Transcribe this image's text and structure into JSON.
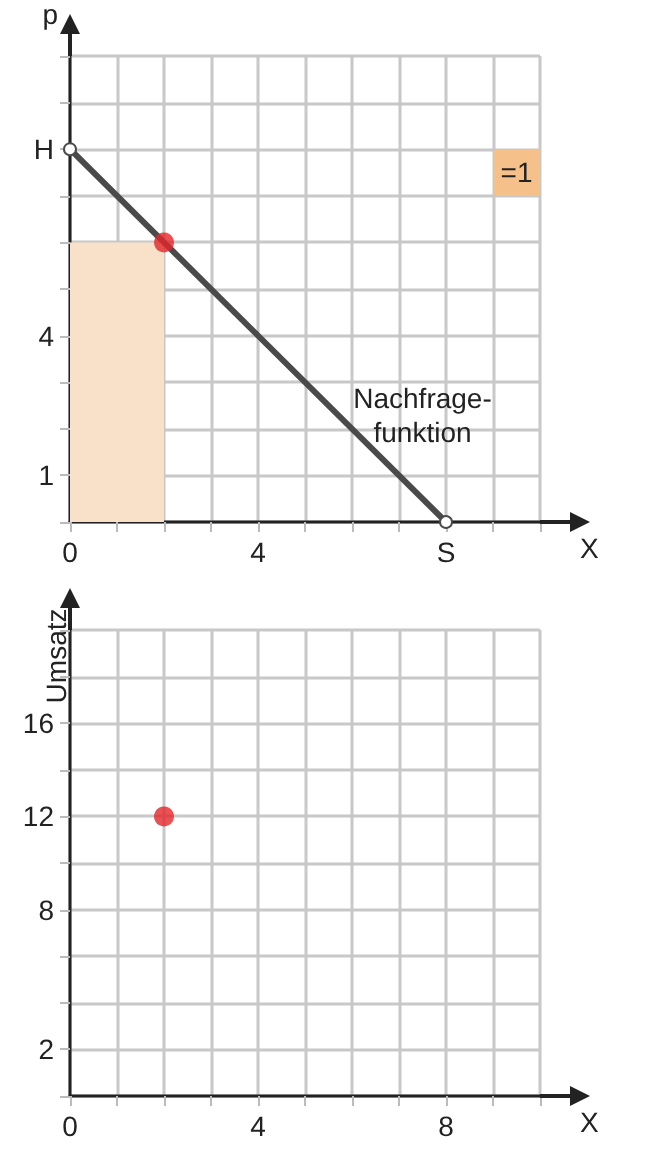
{
  "chart_data": [
    {
      "type": "line",
      "xlabel": "X",
      "ylabel": "p",
      "xlim": [
        0,
        10
      ],
      "ylim": [
        0,
        10
      ],
      "xticks": [
        0,
        {
          "value": 1,
          "label": null
        },
        {
          "value": 2,
          "label": null
        },
        {
          "value": 3,
          "label": null
        },
        4,
        {
          "value": 5,
          "label": null
        },
        {
          "value": 6,
          "label": null
        },
        {
          "value": 7,
          "label": null
        },
        {
          "value": 8,
          "label": "S"
        },
        {
          "value": 9,
          "label": null
        },
        {
          "value": 10,
          "label": null
        }
      ],
      "yticks": [
        {
          "value": 0,
          "label": null
        },
        1,
        {
          "value": 2,
          "label": null
        },
        {
          "value": 3,
          "label": null
        },
        4,
        {
          "value": 5,
          "label": null
        },
        {
          "value": 6,
          "label": null
        },
        {
          "value": 7,
          "label": null
        },
        {
          "value": 8,
          "label": "H"
        },
        {
          "value": 9,
          "label": null
        },
        {
          "value": 10,
          "label": null
        }
      ],
      "grid": true,
      "series": [
        {
          "type": "area",
          "x": [
            0,
            2
          ],
          "values": [
            6,
            6
          ],
          "color": "#f9e1c9",
          "marker": "none"
        },
        {
          "x": [
            0,
            8
          ],
          "values": [
            8,
            0
          ],
          "color": "#4a4a4a",
          "marker": "circle"
        },
        {
          "type": "scatter",
          "x": [
            2
          ],
          "values": [
            6
          ],
          "color": "#e3262a",
          "marker": "circle"
        }
      ],
      "annotations": [
        "Nachfrage-\nfunktion",
        "=1"
      ]
    },
    {
      "type": "scatter",
      "xlabel": "X",
      "ylabel": "Umsatz",
      "xlim": [
        0,
        10
      ],
      "ylim": [
        0,
        20
      ],
      "xticks": [
        0,
        {
          "value": 1,
          "label": null
        },
        {
          "value": 2,
          "label": null
        },
        {
          "value": 3,
          "label": null
        },
        4,
        {
          "value": 5,
          "label": null
        },
        {
          "value": 6,
          "label": null
        },
        {
          "value": 7,
          "label": null
        },
        8,
        {
          "value": 9,
          "label": null
        },
        {
          "value": 10,
          "label": null
        }
      ],
      "yticks": [
        {
          "value": 0,
          "label": null
        },
        2,
        {
          "value": 4,
          "label": null
        },
        {
          "value": 6,
          "label": null
        },
        8,
        {
          "value": 10,
          "label": null
        },
        12,
        {
          "value": 14,
          "label": null
        },
        16,
        {
          "value": 18,
          "label": null
        },
        {
          "value": 20,
          "label": null
        }
      ],
      "grid": true,
      "series": [
        {
          "x": [
            2
          ],
          "values": [
            12
          ],
          "color": "#e3262a"
        }
      ],
      "marker": "circle"
    }
  ]
}
